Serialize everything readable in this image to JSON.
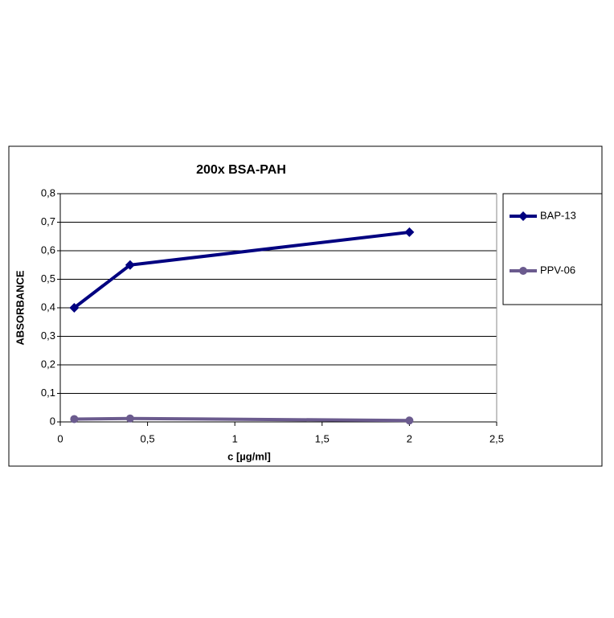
{
  "chart_data": {
    "type": "line",
    "title": "200x BSA-PAH",
    "x_label": "c [µg/ml]",
    "y_label": "ABSORBANCE",
    "xlim": [
      0,
      2.5
    ],
    "xticks": [
      0,
      {
        "value": 0.5,
        "label": "0,5"
      },
      1,
      {
        "value": 1.5,
        "label": "1,5"
      },
      2,
      {
        "value": 2.5,
        "label": "2,5"
      }
    ],
    "ylim": [
      0,
      0.8
    ],
    "yticks": [
      0,
      {
        "value": 0.1,
        "label": "0,1"
      },
      {
        "value": 0.2,
        "label": "0,2"
      },
      {
        "value": 0.3,
        "label": "0,3"
      },
      {
        "value": 0.4,
        "label": "0,4"
      },
      {
        "value": 0.5,
        "label": "0,5"
      },
      {
        "value": 0.6,
        "label": "0,6"
      },
      {
        "value": 0.7,
        "label": "0,7"
      },
      {
        "value": 0.8,
        "label": "0,8"
      }
    ],
    "grid": true,
    "legend": "right",
    "series": [
      {
        "name": "BAP-13",
        "color": "#000080",
        "marker": "diamond",
        "x": [
          0.08,
          0.4,
          2
        ],
        "values": [
          0.4,
          0.55,
          0.665
        ]
      },
      {
        "name": "PPV-06",
        "color": "#6b5b8e",
        "marker": "circle",
        "x": [
          0.08,
          0.4,
          2
        ],
        "values": [
          0.01,
          0.012,
          0.005
        ]
      }
    ]
  }
}
